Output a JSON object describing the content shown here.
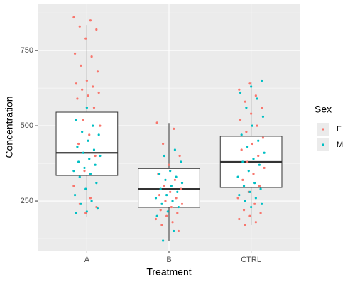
{
  "chart_data": {
    "type": "boxplot",
    "x_label": "Treatment",
    "y_label": "Concentration",
    "categories": [
      "A",
      "B",
      "CTRL"
    ],
    "ylim": [
      85,
      906
    ],
    "yticks": [
      250,
      500,
      750
    ],
    "minor_yticks": [
      125,
      375,
      625,
      875
    ],
    "grid": true,
    "legend_title": "Sex",
    "legend_position": "right",
    "boxes": [
      {
        "q1": 335,
        "median": 410,
        "q3": 545,
        "whisker_low": 198,
        "whisker_high": 835
      },
      {
        "q1": 229,
        "median": 290,
        "q3": 358,
        "whisker_low": 118,
        "whisker_high": 509
      },
      {
        "q1": 295,
        "median": 380,
        "q3": 465,
        "whisker_low": 170,
        "whisker_high": 646
      }
    ],
    "series": [
      {
        "name": "F",
        "color": "#F8766D",
        "groups": [
          "A",
          "A",
          "A",
          "A",
          "A",
          "A",
          "A",
          "A",
          "A",
          "A",
          "A",
          "A",
          "A",
          "A",
          "A",
          "A",
          "A",
          "A",
          "A",
          "A",
          "A",
          "A",
          "A",
          "A",
          "A",
          "A",
          "A",
          "A",
          "B",
          "B",
          "B",
          "B",
          "B",
          "B",
          "B",
          "B",
          "B",
          "B",
          "B",
          "B",
          "B",
          "B",
          "B",
          "B",
          "B",
          "B",
          "B",
          "B",
          "B",
          "B",
          "CTRL",
          "CTRL",
          "CTRL",
          "CTRL",
          "CTRL",
          "CTRL",
          "CTRL",
          "CTRL",
          "CTRL",
          "CTRL",
          "CTRL",
          "CTRL",
          "CTRL",
          "CTRL",
          "CTRL",
          "CTRL",
          "CTRL",
          "CTRL",
          "CTRL",
          "CTRL",
          "CTRL",
          "CTRL",
          "CTRL",
          "CTRL",
          "CTRL",
          "CTRL",
          "CTRL"
        ],
        "values": [
          860,
          850,
          830,
          820,
          790,
          740,
          730,
          700,
          680,
          650,
          640,
          630,
          620,
          610,
          600,
          590,
          560,
          520,
          500,
          470,
          440,
          400,
          350,
          300,
          260,
          240,
          230,
          210,
          510,
          490,
          440,
          400,
          370,
          340,
          320,
          300,
          290,
          280,
          270,
          260,
          250,
          240,
          230,
          220,
          210,
          200,
          190,
          180,
          170,
          150,
          640,
          620,
          600,
          580,
          560,
          540,
          520,
          500,
          480,
          460,
          440,
          420,
          400,
          380,
          360,
          340,
          320,
          300,
          280,
          260,
          240,
          220,
          210,
          200,
          190,
          180,
          170
        ]
      },
      {
        "name": "M",
        "color": "#00BFC4",
        "groups": [
          "A",
          "A",
          "A",
          "A",
          "A",
          "A",
          "A",
          "A",
          "A",
          "A",
          "A",
          "A",
          "A",
          "A",
          "A",
          "A",
          "A",
          "A",
          "A",
          "A",
          "A",
          "A",
          "A",
          "A",
          "A",
          "B",
          "B",
          "B",
          "B",
          "B",
          "B",
          "B",
          "B",
          "B",
          "B",
          "B",
          "B",
          "B",
          "B",
          "B",
          "B",
          "B",
          "B",
          "B",
          "B",
          "CTRL",
          "CTRL",
          "CTRL",
          "CTRL",
          "CTRL",
          "CTRL",
          "CTRL",
          "CTRL",
          "CTRL",
          "CTRL",
          "CTRL",
          "CTRL",
          "CTRL",
          "CTRL",
          "CTRL",
          "CTRL",
          "CTRL",
          "CTRL",
          "CTRL",
          "CTRL",
          "CTRL",
          "CTRL",
          "CTRL",
          "CTRL",
          "CTRL"
        ],
        "values": [
          560,
          520,
          500,
          480,
          470,
          450,
          430,
          420,
          410,
          400,
          390,
          380,
          370,
          360,
          350,
          340,
          330,
          310,
          290,
          270,
          250,
          240,
          225,
          215,
          210,
          420,
          400,
          380,
          350,
          340,
          330,
          320,
          310,
          300,
          290,
          280,
          270,
          260,
          250,
          240,
          230,
          215,
          200,
          150,
          118,
          650,
          630,
          610,
          590,
          560,
          530,
          500,
          470,
          450,
          430,
          410,
          390,
          380,
          370,
          350,
          330,
          310,
          300,
          290,
          280,
          270,
          260,
          250,
          240,
          230
        ]
      }
    ]
  }
}
